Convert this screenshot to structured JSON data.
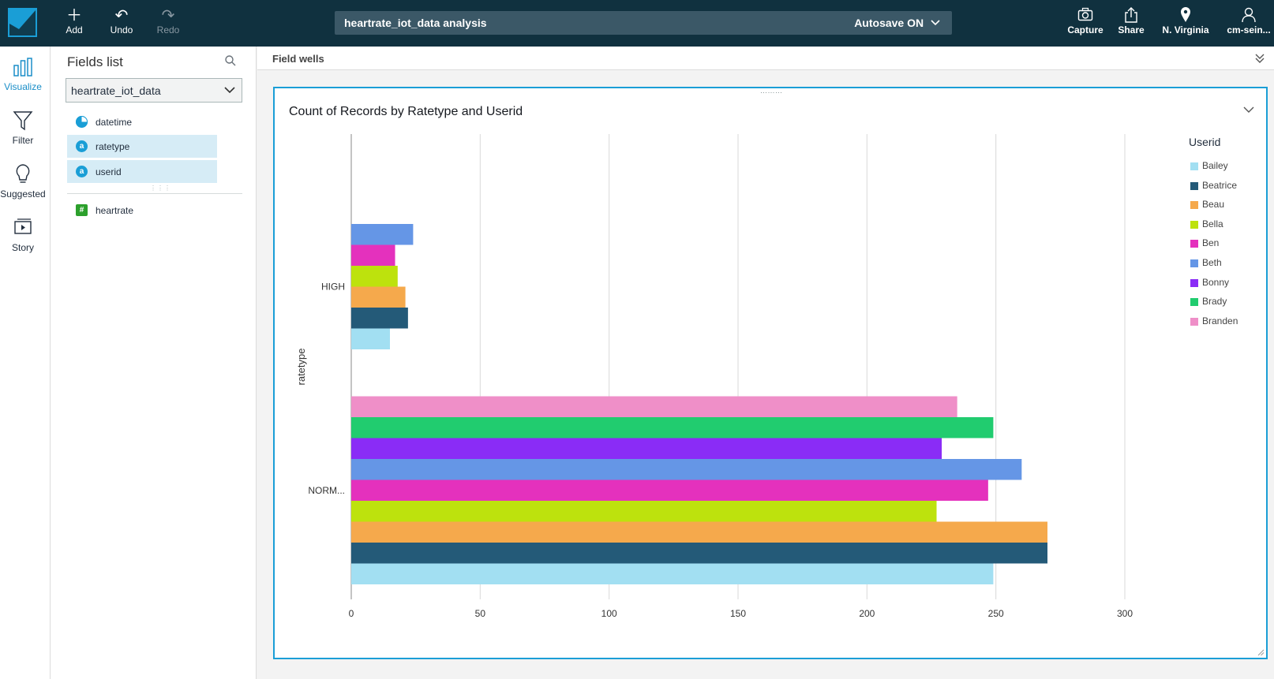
{
  "toolbar": {
    "add_label": "Add",
    "undo_label": "Undo",
    "redo_label": "Redo",
    "analysis_title": "heartrate_iot_data analysis",
    "autosave_label": "Autosave ON",
    "capture_label": "Capture",
    "share_label": "Share",
    "region_label": "N. Virginia",
    "user_label": "cm-sein..."
  },
  "rail": {
    "visualize": "Visualize",
    "filter": "Filter",
    "suggested": "Suggested",
    "story": "Story"
  },
  "fields_panel": {
    "title": "Fields list",
    "dataset": "heartrate_iot_data",
    "fields": [
      {
        "name": "datetime",
        "type": "date",
        "icon": "clock-icon"
      },
      {
        "name": "ratetype",
        "type": "string",
        "icon": "a",
        "selected": true
      },
      {
        "name": "userid",
        "type": "string",
        "icon": "a",
        "selected": true
      },
      {
        "name": "heartrate",
        "type": "number",
        "icon": "#"
      }
    ]
  },
  "wells": {
    "label": "Field wells"
  },
  "visual": {
    "title": "Count of Records by Ratetype and Userid"
  },
  "chart_data": {
    "type": "bar",
    "orientation": "horizontal",
    "title": "Count of Records by Ratetype and Userid",
    "ylabel": "ratetype",
    "xlabel": "",
    "categories": [
      "HIGH",
      "NORM..."
    ],
    "xlim": [
      0,
      300
    ],
    "xticks": [
      "0",
      "50",
      "100",
      "150",
      "200",
      "250",
      "300"
    ],
    "grid": true,
    "legend_title": "Userid",
    "legend_position": "right",
    "series": [
      {
        "name": "Bailey",
        "color": "#a2dff2",
        "values": [
          15,
          249
        ]
      },
      {
        "name": "Beatrice",
        "color": "#245a78",
        "values": [
          22,
          270
        ]
      },
      {
        "name": "Beau",
        "color": "#f5a94c",
        "values": [
          21,
          270
        ]
      },
      {
        "name": "Bella",
        "color": "#bde20d",
        "values": [
          18,
          227
        ]
      },
      {
        "name": "Ben",
        "color": "#e431bd",
        "values": [
          17,
          247
        ]
      },
      {
        "name": "Beth",
        "color": "#6596e6",
        "values": [
          24,
          260
        ]
      },
      {
        "name": "Bonny",
        "color": "#8a2cf6",
        "values": [
          null,
          229
        ]
      },
      {
        "name": "Brady",
        "color": "#21cc6f",
        "values": [
          null,
          249
        ]
      },
      {
        "name": "Branden",
        "color": "#ef8fc8",
        "values": [
          null,
          235
        ]
      }
    ]
  }
}
